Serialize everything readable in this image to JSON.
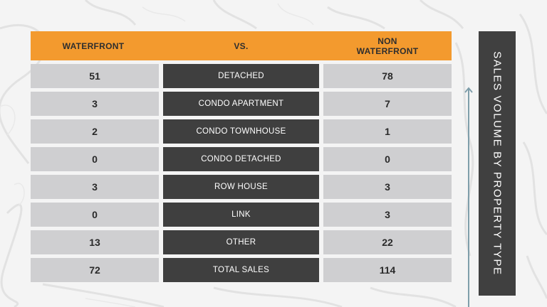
{
  "header": {
    "left": "WATERFRONT",
    "middle": "VS.",
    "right_line1": "NON",
    "right_line2": "WATERFRONT"
  },
  "rows": [
    {
      "waterfront": "51",
      "type": "DETACHED",
      "non_waterfront": "78"
    },
    {
      "waterfront": "3",
      "type": "CONDO APARTMENT",
      "non_waterfront": "7"
    },
    {
      "waterfront": "2",
      "type": "CONDO TOWNHOUSE",
      "non_waterfront": "1"
    },
    {
      "waterfront": "0",
      "type": "CONDO DETACHED",
      "non_waterfront": "0"
    },
    {
      "waterfront": "3",
      "type": "ROW HOUSE",
      "non_waterfront": "3"
    },
    {
      "waterfront": "0",
      "type": "LINK",
      "non_waterfront": "3"
    },
    {
      "waterfront": "13",
      "type": "OTHER",
      "non_waterfront": "22"
    },
    {
      "waterfront": "72",
      "type": "TOTAL SALES",
      "non_waterfront": "114"
    }
  ],
  "side_title": "SALES VOLUME BY PROPERTY TYPE",
  "colors": {
    "header": "#f39a2e",
    "value_cell": "#cfcfd1",
    "type_cell": "#3f3f3f",
    "side_panel": "#404040",
    "arrow": "#7f9eaa"
  }
}
